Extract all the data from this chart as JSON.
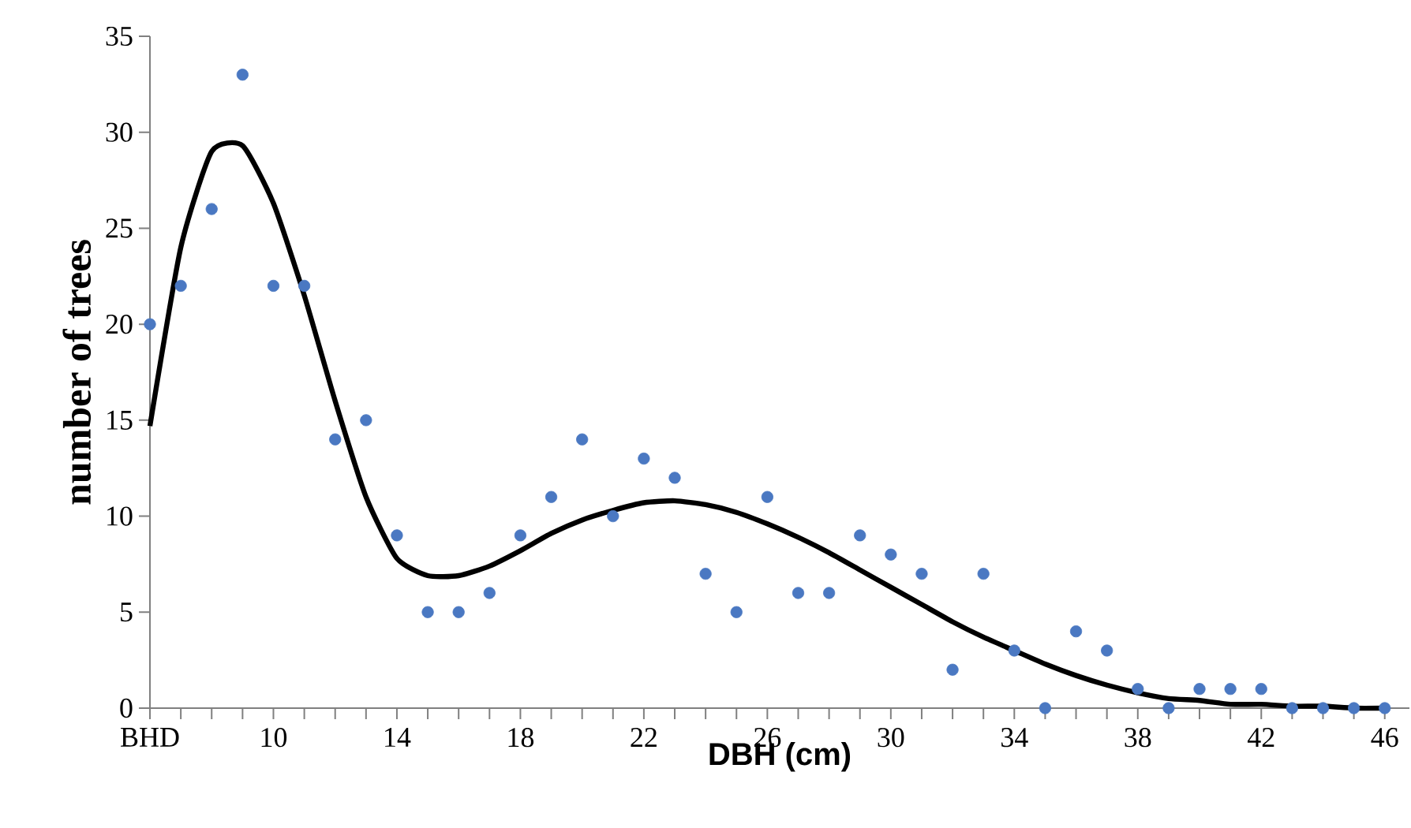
{
  "chart_data": {
    "type": "scatter",
    "xlabel": "DBH (cm)",
    "ylabel": "number of trees",
    "xlim": [
      6,
      46.8
    ],
    "ylim": [
      0,
      35
    ],
    "xticks": [
      {
        "value": 6,
        "label": "BHD"
      },
      10,
      14,
      18,
      22,
      26,
      30,
      34,
      38,
      42,
      46
    ],
    "yticks": [
      0,
      5,
      10,
      15,
      20,
      25,
      30,
      35
    ],
    "grid": false,
    "legend": false,
    "marker": "circle",
    "x": [
      6,
      7,
      8,
      9,
      10,
      11,
      12,
      13,
      14,
      15,
      16,
      17,
      18,
      19,
      20,
      21,
      22,
      23,
      24,
      25,
      26,
      27,
      28,
      29,
      30,
      31,
      32,
      33,
      34,
      35,
      36,
      37,
      38,
      39,
      40,
      41,
      42,
      43,
      44,
      45,
      46
    ],
    "series": [
      {
        "color": "#4a78c2",
        "values": [
          20,
          22,
          26,
          33,
          22,
          22,
          14,
          15,
          9,
          5,
          5,
          6,
          9,
          11,
          14,
          10,
          13,
          12,
          7,
          5,
          11,
          6,
          6,
          9,
          8,
          7,
          2,
          7,
          3,
          0,
          4,
          3,
          1,
          0,
          1,
          1,
          1,
          0,
          0,
          0,
          0
        ]
      },
      {
        "type": "line",
        "color": "#000000",
        "marker": "none",
        "line_style": "solid",
        "values": [
          14.7,
          24,
          29,
          29.3,
          26.3,
          21.5,
          16,
          11,
          7.8,
          6.9,
          6.9,
          7.4,
          8.2,
          9.1,
          9.8,
          10.3,
          10.7,
          10.8,
          10.6,
          10.2,
          9.6,
          8.9,
          8.1,
          7.2,
          6.3,
          5.4,
          4.5,
          3.7,
          3.0,
          2.3,
          1.7,
          1.2,
          0.8,
          0.5,
          0.4,
          0.2,
          0.2,
          0.1,
          0.1,
          0,
          0
        ]
      }
    ]
  }
}
